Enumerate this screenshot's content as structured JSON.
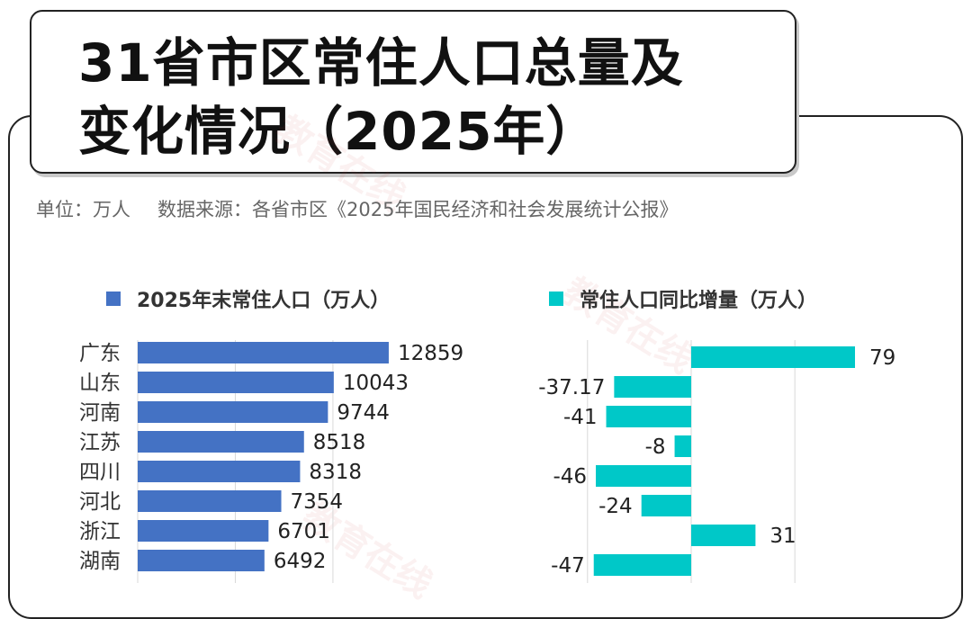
{
  "title": {
    "line1": "31省市区常住人口总量及",
    "line2": "变化情况（2025年）"
  },
  "subtitle": {
    "unit": "单位：万人",
    "source": "数据来源：各省市区《2025年国民经济和社会发展统计公报》"
  },
  "watermark": "教育在线",
  "colors": {
    "population": "#4472c4",
    "change": "#00c8c8",
    "grid": "#d9d9d9"
  },
  "chart_data": [
    {
      "type": "bar",
      "orientation": "horizontal",
      "categories": [
        "广东",
        "山东",
        "河南",
        "江苏",
        "四川",
        "河北",
        "浙江",
        "湖南"
      ],
      "series": [
        {
          "name": "2025年末常住人口（万人）",
          "values": [
            12859,
            10043,
            9744,
            8518,
            8318,
            7354,
            6701,
            6492
          ]
        }
      ],
      "xlim": [
        0,
        15000
      ],
      "grid": true,
      "legend": "top"
    },
    {
      "type": "bar",
      "orientation": "horizontal",
      "categories": [
        "广东",
        "山东",
        "河南",
        "江苏",
        "四川",
        "河北",
        "浙江",
        "湖南"
      ],
      "series": [
        {
          "name": "常住人口同比增量（万人）",
          "values": [
            79,
            -37.17,
            -41,
            -8,
            -46,
            -24,
            31,
            -47
          ]
        }
      ],
      "xlim": [
        -60,
        100
      ],
      "grid": true,
      "legend": "top"
    }
  ]
}
